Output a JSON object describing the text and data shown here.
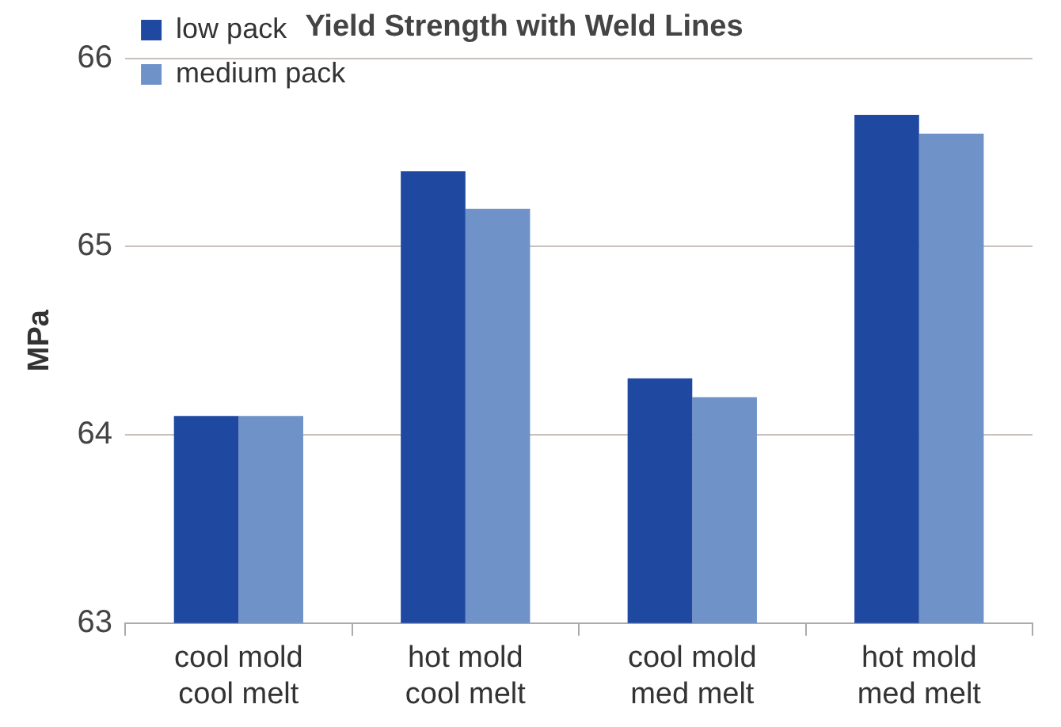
{
  "chart_data": {
    "type": "bar",
    "title": "Yield Strength with Weld Lines",
    "ylabel": "MPa",
    "categories": [
      "cool mold\ncool melt",
      "hot mold\ncool melt",
      "cool mold\nmed melt",
      "hot mold\nmed melt"
    ],
    "series": [
      {
        "name": "low pack",
        "color": "#1f48a0",
        "values": [
          64.1,
          65.4,
          64.3,
          65.7
        ]
      },
      {
        "name": "medium pack",
        "color": "#6f92c8",
        "values": [
          64.1,
          65.2,
          64.2,
          65.6
        ]
      }
    ],
    "ylim": [
      63,
      66
    ],
    "yticks": [
      63,
      64,
      65,
      66
    ],
    "grid": "y",
    "legend": "top left"
  }
}
